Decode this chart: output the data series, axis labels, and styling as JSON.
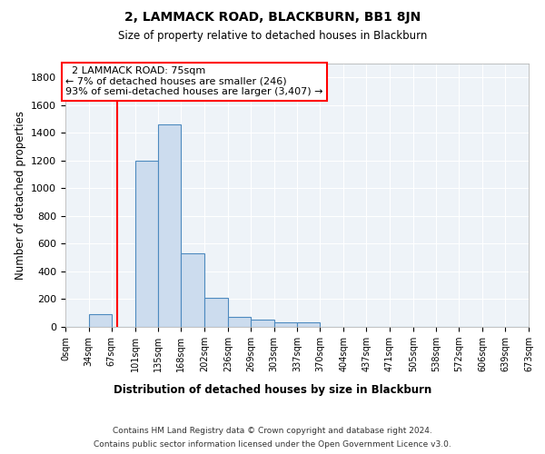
{
  "title": "2, LAMMACK ROAD, BLACKBURN, BB1 8JN",
  "subtitle": "Size of property relative to detached houses in Blackburn",
  "xlabel": "Distribution of detached houses by size in Blackburn",
  "ylabel": "Number of detached properties",
  "footnote1": "Contains HM Land Registry data © Crown copyright and database right 2024.",
  "footnote2": "Contains public sector information licensed under the Open Government Licence v3.0.",
  "bar_edges": [
    0,
    34,
    67,
    101,
    135,
    168,
    202,
    236,
    269,
    303,
    337,
    370,
    404,
    437,
    471,
    505,
    538,
    572,
    606,
    639,
    673
  ],
  "bar_heights": [
    0,
    90,
    0,
    1200,
    1460,
    530,
    210,
    70,
    50,
    30,
    30,
    0,
    0,
    0,
    0,
    0,
    0,
    0,
    0,
    0
  ],
  "bar_color": "#ccdcee",
  "bar_edgecolor": "#4d8abf",
  "tick_labels": [
    "0sqm",
    "34sqm",
    "67sqm",
    "101sqm",
    "135sqm",
    "168sqm",
    "202sqm",
    "236sqm",
    "269sqm",
    "303sqm",
    "337sqm",
    "370sqm",
    "404sqm",
    "437sqm",
    "471sqm",
    "505sqm",
    "538sqm",
    "572sqm",
    "606sqm",
    "639sqm",
    "673sqm"
  ],
  "ylim": [
    0,
    1900
  ],
  "yticks": [
    0,
    200,
    400,
    600,
    800,
    1000,
    1200,
    1400,
    1600,
    1800
  ],
  "red_line_x": 75,
  "annotation_text": "  2 LAMMACK ROAD: 75sqm\n← 7% of detached houses are smaller (246)\n93% of semi-detached houses are larger (3,407) →",
  "background_color": "#eef3f8",
  "grid_color": "#ffffff"
}
